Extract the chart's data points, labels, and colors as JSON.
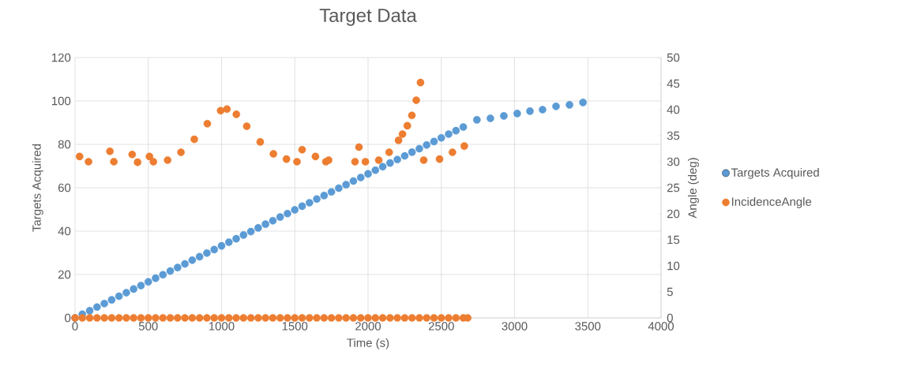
{
  "chart_data": {
    "type": "scatter",
    "title": "Target Data",
    "xlabel": "Time (s)",
    "ylabel": "Targets Acquired",
    "y2label": "Angle (deg)",
    "xlim": [
      0,
      4000
    ],
    "xticks": [
      0,
      500,
      1000,
      1500,
      2000,
      2500,
      3000,
      3500,
      4000
    ],
    "ylim": [
      0,
      120
    ],
    "yticks": [
      0,
      20,
      40,
      60,
      80,
      100,
      120
    ],
    "y2lim": [
      0,
      50
    ],
    "y2ticks": [
      0,
      5,
      10,
      15,
      20,
      25,
      30,
      35,
      40,
      45,
      50
    ],
    "grid": true,
    "legend": "right",
    "series": [
      {
        "name": "Targets Acquired",
        "color": "#5b9bd5",
        "x": [
          0,
          50,
          100,
          150,
          200,
          250,
          300,
          350,
          400,
          450,
          500,
          550,
          600,
          650,
          700,
          750,
          800,
          850,
          900,
          950,
          1000,
          1050,
          1100,
          1150,
          1200,
          1250,
          1300,
          1350,
          1400,
          1450,
          1500,
          1550,
          1600,
          1650,
          1700,
          1750,
          1800,
          1850,
          1900,
          1950,
          2000,
          2050,
          2100,
          2150,
          2200,
          2250,
          2300,
          2350,
          2400,
          2450,
          2500,
          2550,
          2600,
          2650,
          2743,
          2835,
          2927,
          3018,
          3105,
          3191,
          3283,
          3375,
          3467
        ],
        "values": [
          0,
          1.7,
          3.3,
          5.0,
          6.6,
          8.3,
          10.0,
          11.6,
          13.3,
          14.9,
          16.6,
          18.3,
          19.9,
          21.6,
          23.2,
          24.9,
          26.6,
          28.2,
          29.9,
          31.5,
          33.2,
          34.9,
          36.5,
          38.2,
          39.8,
          41.5,
          43.2,
          44.8,
          46.5,
          48.1,
          49.8,
          51.5,
          53.1,
          54.8,
          56.4,
          58.1,
          59.8,
          61.4,
          63.1,
          64.7,
          66.4,
          68.1,
          69.7,
          71.4,
          73.0,
          74.7,
          76.4,
          78.0,
          79.7,
          81.3,
          83.0,
          84.7,
          86.3,
          88.0,
          91.3,
          92,
          93.1,
          94.2,
          95.3,
          96,
          97.5,
          98.2,
          99.3
        ]
      },
      {
        "name": "IncidenceAngle",
        "color": "#ed7d31",
        "axis": "y2",
        "x": [
          31,
          92,
          238,
          265,
          390,
          427,
          508,
          535,
          632,
          723,
          814,
          903,
          994,
          1037,
          1101,
          1172,
          1264,
          1354,
          1443,
          1515,
          1550,
          1641,
          1712,
          1731,
          1911,
          1938,
          1982,
          2073,
          2144,
          2208,
          2235,
          2268,
          2299,
          2329,
          2358,
          2380,
          2488,
          2576,
          2657,
          0,
          50,
          100,
          150,
          200,
          250,
          300,
          350,
          400,
          450,
          500,
          550,
          600,
          650,
          700,
          750,
          800,
          850,
          900,
          950,
          1000,
          1050,
          1100,
          1150,
          1200,
          1250,
          1300,
          1350,
          1400,
          1450,
          1500,
          1550,
          1600,
          1650,
          1700,
          1750,
          1800,
          1850,
          1900,
          1950,
          2000,
          2050,
          2100,
          2150,
          2200,
          2250,
          2300,
          2350,
          2400,
          2450,
          2500,
          2550,
          2600,
          2650,
          2680
        ],
        "values": [
          31.0,
          30.0,
          32.0,
          30.0,
          31.4,
          29.9,
          31.0,
          30.0,
          30.3,
          31.8,
          34.3,
          37.3,
          39.8,
          40.1,
          39.1,
          36.8,
          33.8,
          31.5,
          30.5,
          30.0,
          32.3,
          31.0,
          30.0,
          30.3,
          30.0,
          32.8,
          30.0,
          30.3,
          31.8,
          34.1,
          35.3,
          36.9,
          38.9,
          41.8,
          45.2,
          30.3,
          30.5,
          31.8,
          33.0,
          0,
          0,
          0,
          0,
          0,
          0,
          0,
          0,
          0,
          0,
          0,
          0,
          0,
          0,
          0,
          0,
          0,
          0,
          0,
          0,
          0,
          0,
          0,
          0,
          0,
          0,
          0,
          0,
          0,
          0,
          0,
          0,
          0,
          0,
          0,
          0,
          0,
          0,
          0,
          0,
          0,
          0,
          0,
          0,
          0,
          0,
          0,
          0,
          0,
          0,
          0,
          0,
          0,
          0,
          0
        ]
      }
    ]
  }
}
